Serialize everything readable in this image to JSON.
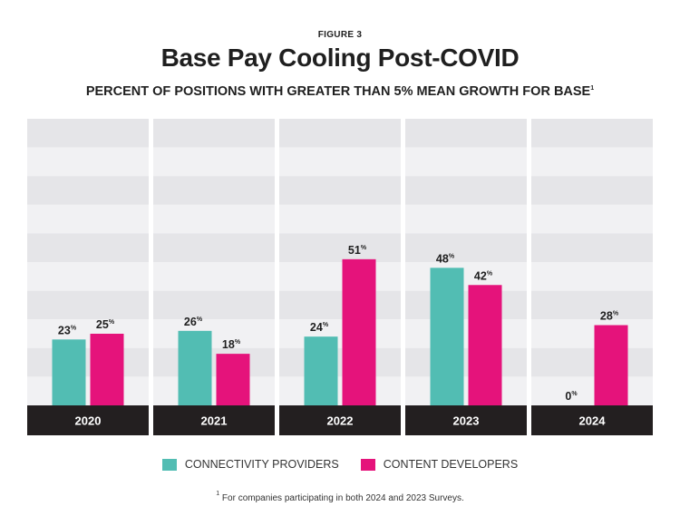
{
  "figure_label": "FIGURE 3",
  "title": "Base Pay Cooling Post-COVID",
  "subtitle": "PERCENT OF POSITIONS WITH GREATER THAN 5% MEAN GROWTH FOR BASE",
  "subtitle_marker": "1",
  "footnote_marker": "1",
  "footnote": "For companies participating in both 2024 and 2023 Surveys.",
  "colors": {
    "connectivity": "#52bdb3",
    "content": "#e5137b",
    "axis_bar": "#231f20",
    "band_dark": "#e5e5e8",
    "band_light": "#f1f1f3"
  },
  "chart_data": {
    "type": "bar",
    "title": "Base Pay Cooling Post-COVID",
    "subtitle": "PERCENT OF POSITIONS WITH GREATER THAN 5% MEAN GROWTH FOR BASE",
    "categories": [
      "2020",
      "2021",
      "2022",
      "2023",
      "2024"
    ],
    "series": [
      {
        "name": "CONNECTIVITY PROVIDERS",
        "values": [
          23,
          26,
          24,
          48,
          0
        ]
      },
      {
        "name": "CONTENT DEVELOPERS",
        "values": [
          25,
          18,
          51,
          42,
          28
        ]
      }
    ],
    "value_suffix": "%",
    "ylim": [
      0,
      100
    ],
    "grid_bands": 10,
    "legend_position": "bottom"
  }
}
